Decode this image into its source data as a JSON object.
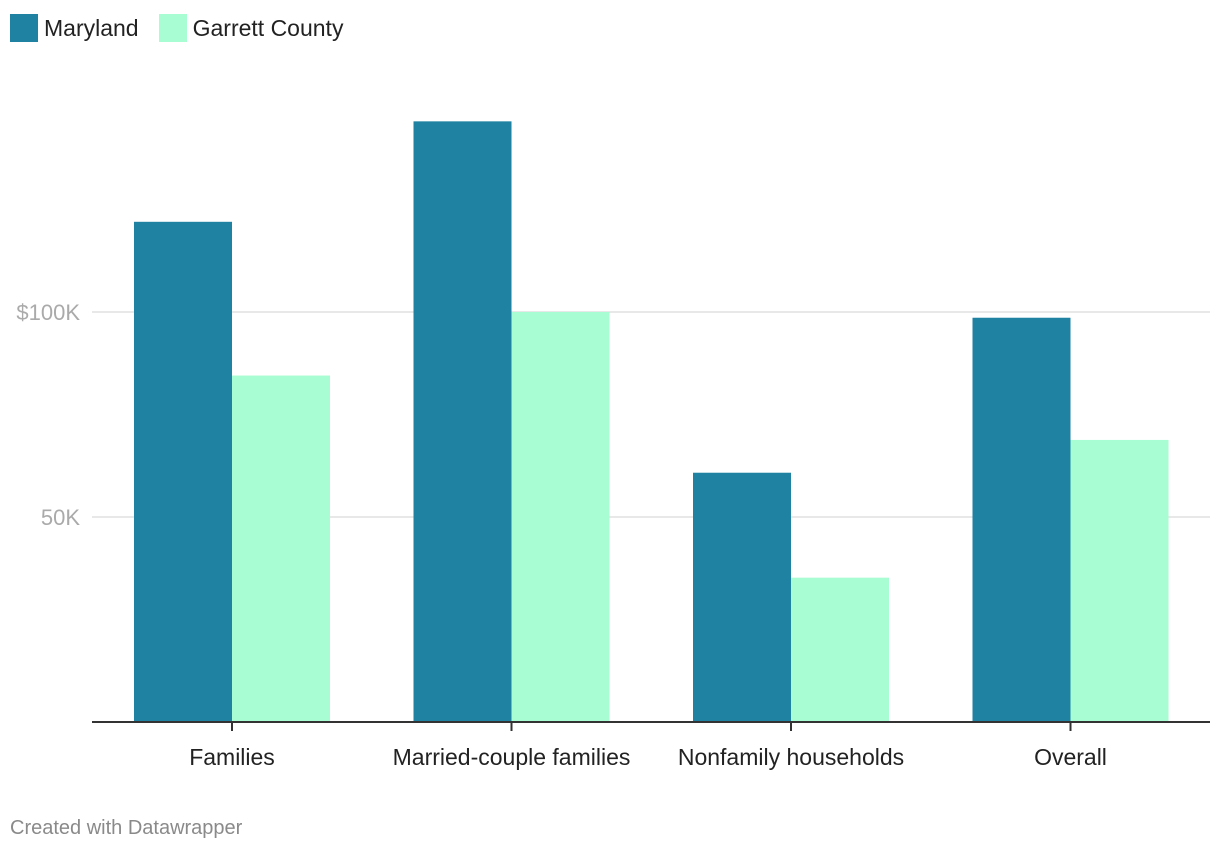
{
  "legend": [
    {
      "name": "Maryland",
      "color": "#1f82a3"
    },
    {
      "name": "Garrett County",
      "color": "#a8fdd2"
    }
  ],
  "chart_data": {
    "type": "bar",
    "categories": [
      "Families",
      "Married-couple families",
      "Nonfamily households",
      "Overall"
    ],
    "series": [
      {
        "name": "Maryland",
        "color": "#1f82a3",
        "values": [
          122000,
          146500,
          60800,
          98600
        ]
      },
      {
        "name": "Garrett County",
        "color": "#a8fdd2",
        "values": [
          84500,
          100000,
          35200,
          68800
        ]
      }
    ],
    "ylim": [
      0,
      165000
    ],
    "yticks": [
      {
        "value": 50000,
        "label": "50K"
      },
      {
        "value": 100000,
        "label": "$100K"
      }
    ],
    "title": "",
    "xlabel": "",
    "ylabel": "",
    "grid": true
  },
  "footer": {
    "text": "Created with Datawrapper"
  }
}
